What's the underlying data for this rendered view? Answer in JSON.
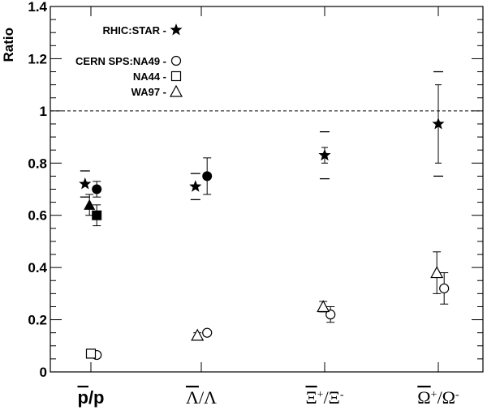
{
  "chart_data": {
    "type": "scatter",
    "ylabel": "Ratio",
    "ylim": [
      0,
      1.4
    ],
    "yticks": [
      "0",
      "0.2",
      "0.4",
      "0.6",
      "0.8",
      "1",
      "1.2",
      "1.4"
    ],
    "reference_line": 1.0,
    "categories": [
      "p̄/p",
      "Λ̄/Λ",
      "Ξ̄⁺/Ξ⁻",
      "Ω̄⁺/Ω⁻"
    ],
    "legend": [
      {
        "label": "RHIC:STAR -",
        "marker": "star"
      },
      {
        "label": "CERN SPS:NA49 -",
        "marker": "circle-open"
      },
      {
        "label": "NA44 -",
        "marker": "square-open"
      },
      {
        "label": "WA97 -",
        "marker": "triangle-open"
      }
    ],
    "series": [
      {
        "name": "RHIC:STAR",
        "marker": "star",
        "points": [
          {
            "category": 0,
            "offset": -0.12,
            "value": 0.72,
            "err_lo": 0.67,
            "err_hi": 0.77,
            "err_style": "dash"
          },
          {
            "category": 1,
            "offset": -0.12,
            "value": 0.71,
            "err_lo": 0.66,
            "err_hi": 0.76,
            "err_style": "dash"
          },
          {
            "category": 2,
            "offset": 0.0,
            "value": 0.83,
            "err_lo": 0.74,
            "err_hi": 0.92,
            "err_style": "dash",
            "inner_lo": 0.8,
            "inner_hi": 0.86
          },
          {
            "category": 3,
            "offset": 0.0,
            "value": 0.95,
            "err_lo": 0.75,
            "err_hi": 1.15,
            "err_style": "dash",
            "inner_lo": 0.8,
            "inner_hi": 1.1
          }
        ]
      },
      {
        "name": "NA49",
        "marker": "circle-filled",
        "points": [
          {
            "category": 0,
            "offset": 0.12,
            "value": 0.7,
            "err_lo": 0.67,
            "err_hi": 0.73
          },
          {
            "category": 1,
            "offset": 0.12,
            "value": 0.75,
            "err_lo": 0.68,
            "err_hi": 0.82
          }
        ]
      },
      {
        "name": "NA44",
        "marker": "square-filled",
        "points": [
          {
            "category": 0,
            "offset": 0.12,
            "value": 0.6,
            "err_lo": 0.56,
            "err_hi": 0.64
          }
        ]
      },
      {
        "name": "WA97",
        "marker": "triangle-filled",
        "points": [
          {
            "category": 0,
            "offset": -0.03,
            "value": 0.64,
            "err_lo": 0.6,
            "err_hi": 0.68
          }
        ]
      },
      {
        "name": "CERN SPS:NA49",
        "marker": "circle-open",
        "points": [
          {
            "category": 0,
            "offset": 0.12,
            "value": 0.065,
            "err_lo": 0.055,
            "err_hi": 0.075
          },
          {
            "category": 1,
            "offset": 0.12,
            "value": 0.15,
            "err_lo": 0.14,
            "err_hi": 0.16
          },
          {
            "category": 2,
            "offset": 0.12,
            "value": 0.22,
            "err_lo": 0.19,
            "err_hi": 0.25
          },
          {
            "category": 3,
            "offset": 0.12,
            "value": 0.32,
            "err_lo": 0.26,
            "err_hi": 0.38
          }
        ]
      },
      {
        "name": "NA44",
        "marker": "square-open",
        "points": [
          {
            "category": 0,
            "offset": 0.0,
            "value": 0.07,
            "err_lo": 0.06,
            "err_hi": 0.08
          }
        ]
      },
      {
        "name": "WA97",
        "marker": "triangle-open",
        "points": [
          {
            "category": 1,
            "offset": -0.08,
            "value": 0.14,
            "err_lo": 0.13,
            "err_hi": 0.15
          },
          {
            "category": 2,
            "offset": -0.03,
            "value": 0.25,
            "err_lo": 0.23,
            "err_hi": 0.27
          },
          {
            "category": 3,
            "offset": -0.03,
            "value": 0.38,
            "err_lo": 0.3,
            "err_hi": 0.46
          }
        ]
      }
    ]
  }
}
